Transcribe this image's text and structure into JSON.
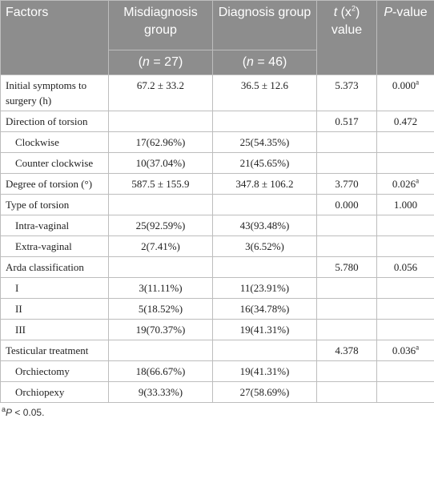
{
  "header": {
    "factors": "Factors",
    "misdiagnosis": "Misdiagnosis group",
    "diagnosis": "Diagnosis group",
    "t": {
      "italic": "t",
      "text": " (x",
      "sup": "2",
      "after": ") value"
    },
    "p": {
      "italic": "P",
      "text": "-value"
    },
    "n_misdiagnosis": {
      "open": "(",
      "italic": "n",
      "text": " = 27)"
    },
    "n_diagnosis": {
      "open": "(",
      "italic": "n",
      "text": " = 46)"
    }
  },
  "table": {
    "rows": [
      {
        "level": 0,
        "cells": [
          "Initial symptoms to surgery (h)",
          "67.2 ± 33.2",
          "36.5 ± 12.6",
          "5.373",
          {
            "text": "0.000",
            "sup": "a"
          }
        ]
      },
      {
        "level": 0,
        "cells": [
          "Direction of torsion",
          null,
          null,
          "0.517",
          "0.472"
        ]
      },
      {
        "level": 1,
        "cells": [
          "Clockwise",
          "17(62.96%)",
          "25(54.35%)",
          null,
          null
        ]
      },
      {
        "level": 1,
        "cells": [
          "Counter clockwise",
          "10(37.04%)",
          "21(45.65%)",
          null,
          null
        ]
      },
      {
        "level": 0,
        "cells": [
          "Degree of torsion (°)",
          "587.5 ± 155.9",
          "347.8 ± 106.2",
          "3.770",
          {
            "text": "0.026",
            "sup": "a"
          }
        ]
      },
      {
        "level": 0,
        "cells": [
          "Type of torsion",
          null,
          null,
          "0.000",
          "1.000"
        ]
      },
      {
        "level": 1,
        "cells": [
          "Intra-vaginal",
          "25(92.59%)",
          "43(93.48%)",
          null,
          null
        ]
      },
      {
        "level": 1,
        "cells": [
          "Extra-vaginal",
          "2(7.41%)",
          "3(6.52%)",
          null,
          null
        ]
      },
      {
        "level": 0,
        "cells": [
          "Arda classification",
          null,
          null,
          "5.780",
          "0.056"
        ]
      },
      {
        "level": 1,
        "cells": [
          "I",
          "3(11.11%)",
          "11(23.91%)",
          null,
          null
        ]
      },
      {
        "level": 1,
        "cells": [
          "II",
          "5(18.52%)",
          "16(34.78%)",
          null,
          null
        ]
      },
      {
        "level": 1,
        "cells": [
          "III",
          "19(70.37%)",
          "19(41.31%)",
          null,
          null
        ]
      },
      {
        "level": 0,
        "cells": [
          "Testicular treatment",
          null,
          null,
          "4.378",
          {
            "text": "0.036",
            "sup": "a"
          }
        ]
      },
      {
        "level": 1,
        "cells": [
          "Orchiectomy",
          "18(66.67%)",
          "19(41.31%)",
          null,
          null
        ]
      },
      {
        "level": 1,
        "cells": [
          "Orchiopexy",
          "9(33.33%)",
          "27(58.69%)",
          null,
          null
        ]
      }
    ]
  },
  "footnote": {
    "sup": "a",
    "italic": "P",
    "text": " < 0.05."
  }
}
